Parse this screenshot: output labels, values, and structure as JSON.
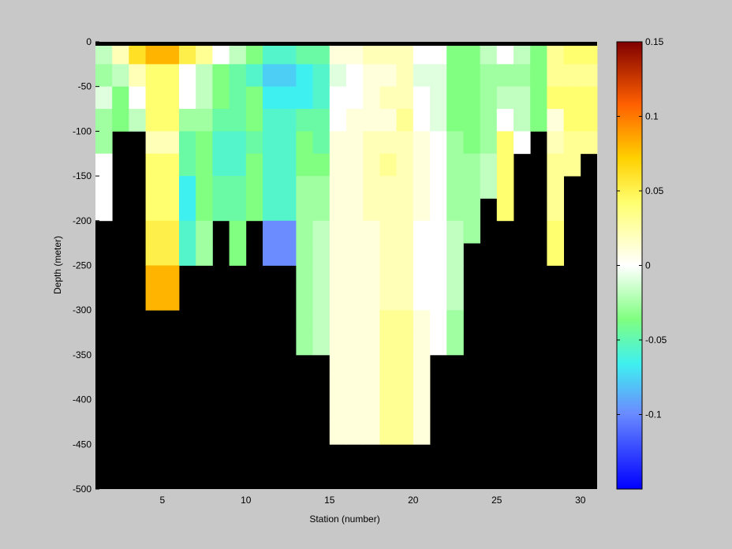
{
  "chart_data": {
    "type": "heatmap",
    "title": "",
    "xlabel": "Station (number)",
    "ylabel": "Depth (meter)",
    "xlim": [
      1,
      31
    ],
    "ylim": [
      -500,
      0
    ],
    "x_ticks": [
      5,
      10,
      15,
      20,
      25,
      30
    ],
    "y_ticks": [
      0,
      -50,
      -100,
      -150,
      -200,
      -250,
      -300,
      -350,
      -400,
      -450,
      -500
    ],
    "stations": [
      1,
      2,
      3,
      4,
      5,
      6,
      7,
      8,
      9,
      10,
      11,
      12,
      13,
      14,
      15,
      16,
      17,
      18,
      19,
      20,
      21,
      22,
      23,
      24,
      25,
      26,
      27,
      28,
      29,
      30
    ],
    "depth_bin_meters": 25,
    "colorbar": {
      "range": [
        -0.15,
        0.15
      ],
      "ticks": [
        -0.1,
        -0.05,
        0,
        0.05,
        0.1,
        0.15
      ],
      "tick_labels": [
        "-0.1",
        "-0.05",
        "0",
        "0.05",
        "0.1",
        "0.15"
      ]
    },
    "background_color": "#000000",
    "columns": [
      {
        "station": 1,
        "values": [
          -0.02,
          -0.03,
          -0.01,
          -0.03,
          -0.03,
          0.0,
          0.0,
          0.0
        ]
      },
      {
        "station": 2,
        "values": [
          0.02,
          -0.02,
          -0.04,
          -0.04
        ]
      },
      {
        "station": 3,
        "values": [
          0.06,
          0.02,
          0.0,
          -0.02
        ]
      },
      {
        "station": 4,
        "values": [
          0.08,
          0.04,
          0.04,
          0.04,
          0.02,
          0.04,
          0.04,
          0.04,
          0.05,
          0.05,
          0.08,
          0.08
        ]
      },
      {
        "station": 5,
        "values": [
          0.08,
          0.04,
          0.04,
          0.04,
          0.02,
          0.04,
          0.04,
          0.04,
          0.05,
          0.05,
          0.08,
          0.08
        ]
      },
      {
        "station": 6,
        "values": [
          0.05,
          0.0,
          0.0,
          -0.03,
          -0.05,
          -0.05,
          -0.07,
          -0.07,
          -0.06,
          -0.06
        ]
      },
      {
        "station": 7,
        "values": [
          0.03,
          -0.02,
          -0.02,
          -0.03,
          -0.04,
          -0.04,
          -0.04,
          -0.04,
          -0.03,
          -0.03
        ]
      },
      {
        "station": 8,
        "values": [
          0.0,
          -0.04,
          -0.04,
          -0.05,
          -0.06,
          -0.06,
          -0.05,
          -0.05
        ]
      },
      {
        "station": 9,
        "values": [
          -0.02,
          -0.05,
          -0.05,
          -0.05,
          -0.06,
          -0.06,
          -0.05,
          -0.05,
          -0.04,
          -0.04
        ]
      },
      {
        "station": 10,
        "values": [
          -0.04,
          -0.06,
          -0.04,
          -0.04,
          -0.05,
          -0.04,
          -0.04,
          -0.04
        ]
      },
      {
        "station": 11,
        "values": [
          -0.06,
          -0.08,
          -0.07,
          -0.06,
          -0.06,
          -0.06,
          -0.06,
          -0.06,
          -0.1,
          -0.1
        ]
      },
      {
        "station": 12,
        "values": [
          -0.06,
          -0.08,
          -0.07,
          -0.06,
          -0.06,
          -0.06,
          -0.06,
          -0.06,
          -0.1,
          -0.1
        ]
      },
      {
        "station": 13,
        "values": [
          -0.05,
          -0.07,
          -0.07,
          -0.05,
          -0.04,
          -0.04,
          -0.03,
          -0.03,
          -0.03,
          -0.03,
          -0.03,
          -0.03,
          -0.03,
          -0.03
        ]
      },
      {
        "station": 14,
        "values": [
          -0.05,
          -0.06,
          -0.06,
          -0.05,
          -0.05,
          -0.04,
          -0.03,
          -0.03,
          -0.02,
          -0.02,
          -0.02,
          -0.02,
          -0.02,
          -0.02
        ]
      },
      {
        "station": 15,
        "values": [
          0.01,
          -0.01,
          0.0,
          0.0,
          0.01,
          0.01,
          0.01,
          0.01,
          0.01,
          0.01,
          0.01,
          0.01,
          0.01,
          0.01,
          0.01,
          0.01,
          0.01,
          0.01
        ]
      },
      {
        "station": 16,
        "values": [
          0.01,
          0.0,
          0.0,
          0.01,
          0.01,
          0.01,
          0.01,
          0.01,
          0.01,
          0.01,
          0.01,
          0.01,
          0.01,
          0.01,
          0.01,
          0.01,
          0.01,
          0.01
        ]
      },
      {
        "station": 17,
        "values": [
          0.02,
          0.01,
          0.01,
          0.01,
          0.02,
          0.02,
          0.02,
          0.02,
          0.01,
          0.01,
          0.01,
          0.01,
          0.01,
          0.01,
          0.01,
          0.01,
          0.01,
          0.01
        ]
      },
      {
        "station": 18,
        "values": [
          0.02,
          0.01,
          0.02,
          0.01,
          0.02,
          0.03,
          0.02,
          0.02,
          0.02,
          0.02,
          0.02,
          0.02,
          0.03,
          0.03,
          0.03,
          0.03,
          0.03,
          0.03
        ]
      },
      {
        "station": 19,
        "values": [
          0.02,
          0.02,
          0.02,
          0.03,
          0.02,
          0.02,
          0.02,
          0.02,
          0.02,
          0.02,
          0.02,
          0.02,
          0.03,
          0.03,
          0.03,
          0.03,
          0.03,
          0.03
        ]
      },
      {
        "station": 20,
        "values": [
          0.0,
          -0.01,
          0.0,
          0.0,
          0.01,
          0.01,
          0.01,
          0.01,
          0.0,
          0.0,
          0.0,
          0.0,
          0.01,
          0.01,
          0.01,
          0.01,
          0.01,
          0.01
        ]
      },
      {
        "station": 21,
        "values": [
          0.0,
          -0.01,
          -0.01,
          -0.01,
          0.0,
          0.0,
          0.0,
          0.0,
          0.0,
          0.0,
          0.0,
          0.0,
          0.0,
          0.0
        ]
      },
      {
        "station": 22,
        "values": [
          -0.04,
          -0.04,
          -0.04,
          -0.04,
          -0.03,
          -0.03,
          -0.03,
          -0.03,
          -0.02,
          -0.02,
          -0.02,
          -0.02,
          -0.03,
          -0.03
        ]
      },
      {
        "station": 23,
        "values": [
          -0.04,
          -0.04,
          -0.04,
          -0.04,
          -0.04,
          -0.03,
          -0.03,
          -0.03,
          -0.03
        ]
      },
      {
        "station": 24,
        "values": [
          -0.02,
          -0.03,
          -0.03,
          -0.03,
          -0.03,
          -0.02,
          -0.02
        ]
      },
      {
        "station": 25,
        "values": [
          0.0,
          -0.03,
          -0.02,
          0.0,
          0.04,
          0.04,
          0.04,
          0.04
        ]
      },
      {
        "station": 26,
        "values": [
          -0.02,
          -0.03,
          -0.02,
          -0.02,
          0.0
        ]
      },
      {
        "station": 27,
        "values": [
          -0.04,
          -0.04,
          -0.04,
          -0.04
        ]
      },
      {
        "station": 28,
        "values": [
          0.03,
          0.03,
          0.04,
          0.01,
          0.02,
          0.03,
          0.03,
          0.03,
          0.04,
          0.04
        ]
      },
      {
        "station": 29,
        "values": [
          0.04,
          0.03,
          0.04,
          0.04,
          0.03,
          0.03
        ]
      },
      {
        "station": 30,
        "values": [
          0.04,
          0.03,
          0.04,
          0.04,
          0.03
        ]
      }
    ]
  }
}
